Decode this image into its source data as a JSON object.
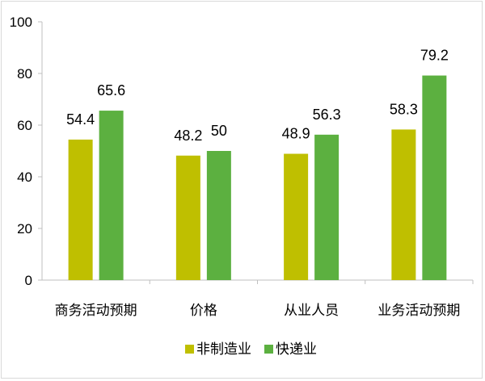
{
  "chart_data": {
    "type": "bar",
    "categories": [
      "商务活动预期",
      "价格",
      "从业人员",
      "业务活动预期"
    ],
    "series": [
      {
        "name": "非制造业",
        "values": [
          54.4,
          48.2,
          48.9,
          58.3
        ],
        "color": "#bfbf00"
      },
      {
        "name": "快递业",
        "values": [
          65.6,
          50,
          56.3,
          79.2
        ],
        "color": "#5cb040"
      }
    ],
    "ylim": [
      0,
      100
    ],
    "yticks": [
      0,
      20,
      40,
      60,
      80,
      100
    ],
    "data_labels": [
      [
        "54.4",
        "48.2",
        "48.9",
        "58.3"
      ],
      [
        "65.6",
        "50",
        "56.3",
        "79.2"
      ]
    ],
    "grid": false,
    "legend": "bottom-center"
  }
}
